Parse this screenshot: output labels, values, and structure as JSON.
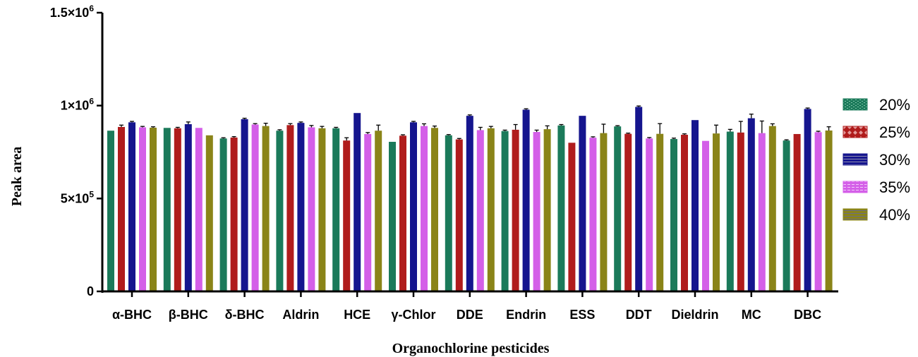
{
  "chart_data": {
    "type": "bar",
    "title": "",
    "xlabel": "Organochlorine pesticides",
    "ylabel": "Peak area",
    "ylim": [
      0,
      1500000
    ],
    "yticks": [
      {
        "value": 0,
        "base": "0",
        "exp": ""
      },
      {
        "value": 500000,
        "base": "5×10",
        "exp": "5"
      },
      {
        "value": 1000000,
        "base": "1×10",
        "exp": "6"
      },
      {
        "value": 1500000,
        "base": "1.5×10",
        "exp": "6"
      }
    ],
    "grid": false,
    "legend_position": "right",
    "categories": [
      "α-BHC",
      "β-BHC",
      "δ-BHC",
      "Aldrin",
      "HCE",
      "γ-Chlor",
      "DDE",
      "Endrin",
      "ESS",
      "DDT",
      "Dieldrin",
      "MC",
      "DBC"
    ],
    "series": [
      {
        "name": "20%",
        "color": "#1b7a5a",
        "values": [
          865000,
          880000,
          823000,
          865000,
          878000,
          805000,
          840000,
          863000,
          893000,
          888000,
          820000,
          860000,
          812000
        ],
        "errors": [
          0,
          0,
          4000,
          5000,
          5000,
          0,
          4000,
          5000,
          5000,
          4000,
          5000,
          12000,
          4000
        ]
      },
      {
        "name": "25%",
        "color": "#b01c1c",
        "values": [
          885000,
          878000,
          828000,
          895000,
          812000,
          838000,
          818000,
          870000,
          800000,
          848000,
          843000,
          855000,
          847000
        ],
        "errors": [
          10000,
          5000,
          5000,
          8000,
          15000,
          5000,
          5000,
          28000,
          0,
          4000,
          5000,
          60000,
          0
        ]
      },
      {
        "name": "30%",
        "color": "#15158e",
        "values": [
          910000,
          900000,
          927000,
          907000,
          960000,
          910000,
          945000,
          978000,
          945000,
          993000,
          922000,
          932000,
          982000
        ],
        "errors": [
          5000,
          12000,
          5000,
          5000,
          0,
          5000,
          5000,
          5000,
          0,
          5000,
          0,
          22000,
          5000
        ]
      },
      {
        "name": "35%",
        "color": "#d45fe8",
        "values": [
          883000,
          880000,
          898000,
          883000,
          847000,
          890000,
          868000,
          858000,
          827000,
          823000,
          810000,
          852000,
          857000
        ],
        "errors": [
          5000,
          0,
          5000,
          10000,
          8000,
          12000,
          15000,
          10000,
          5000,
          5000,
          0,
          65000,
          5000
        ]
      },
      {
        "name": "40%",
        "color": "#8a8418",
        "values": [
          881000,
          840000,
          890000,
          878000,
          865000,
          880000,
          878000,
          873000,
          852000,
          848000,
          850000,
          890000,
          866000
        ],
        "errors": [
          5000,
          0,
          15000,
          10000,
          30000,
          10000,
          10000,
          18000,
          48000,
          55000,
          45000,
          12000,
          20000
        ]
      }
    ]
  }
}
